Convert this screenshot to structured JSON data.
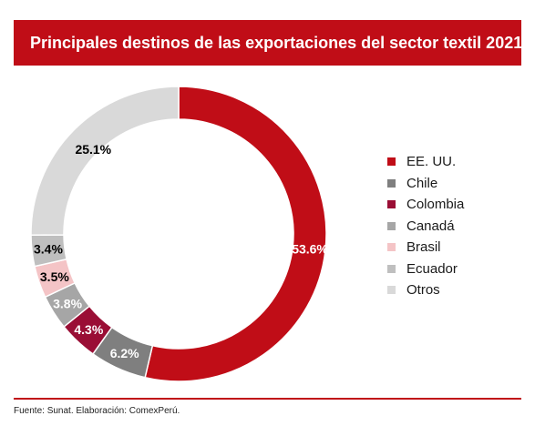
{
  "header": {
    "title": "Principales destinos de las exportaciones del sector textil 2021"
  },
  "footer": {
    "source": "Fuente: Sunat. Elaboración: ComexPerú."
  },
  "chart_data": {
    "type": "pie",
    "variant": "donut",
    "title": "Principales destinos de las exportaciones del sector textil 2021",
    "legend_position": "right",
    "slices": [
      {
        "label": "EE. UU.",
        "value": 53.6,
        "display": "53.6%",
        "color": "#c00d17",
        "label_color": "#ffffff"
      },
      {
        "label": "Chile",
        "value": 6.2,
        "display": "6.2%",
        "color": "#7f7f7f",
        "label_color": "#ffffff"
      },
      {
        "label": "Colombia",
        "value": 4.3,
        "display": "4.3%",
        "color": "#9a0e35",
        "label_color": "#ffffff"
      },
      {
        "label": "Canadá",
        "value": 3.8,
        "display": "3.8%",
        "color": "#a6a6a6",
        "label_color": "#ffffff"
      },
      {
        "label": "Brasil",
        "value": 3.5,
        "display": "3.5%",
        "color": "#f4c4c6",
        "label_color": "#000000"
      },
      {
        "label": "Ecuador",
        "value": 3.4,
        "display": "3.4%",
        "color": "#bfbfbf",
        "label_color": "#000000"
      },
      {
        "label": "Otros",
        "value": 25.1,
        "display": "25.1%",
        "color": "#d9d9d9",
        "label_color": "#000000"
      }
    ]
  }
}
